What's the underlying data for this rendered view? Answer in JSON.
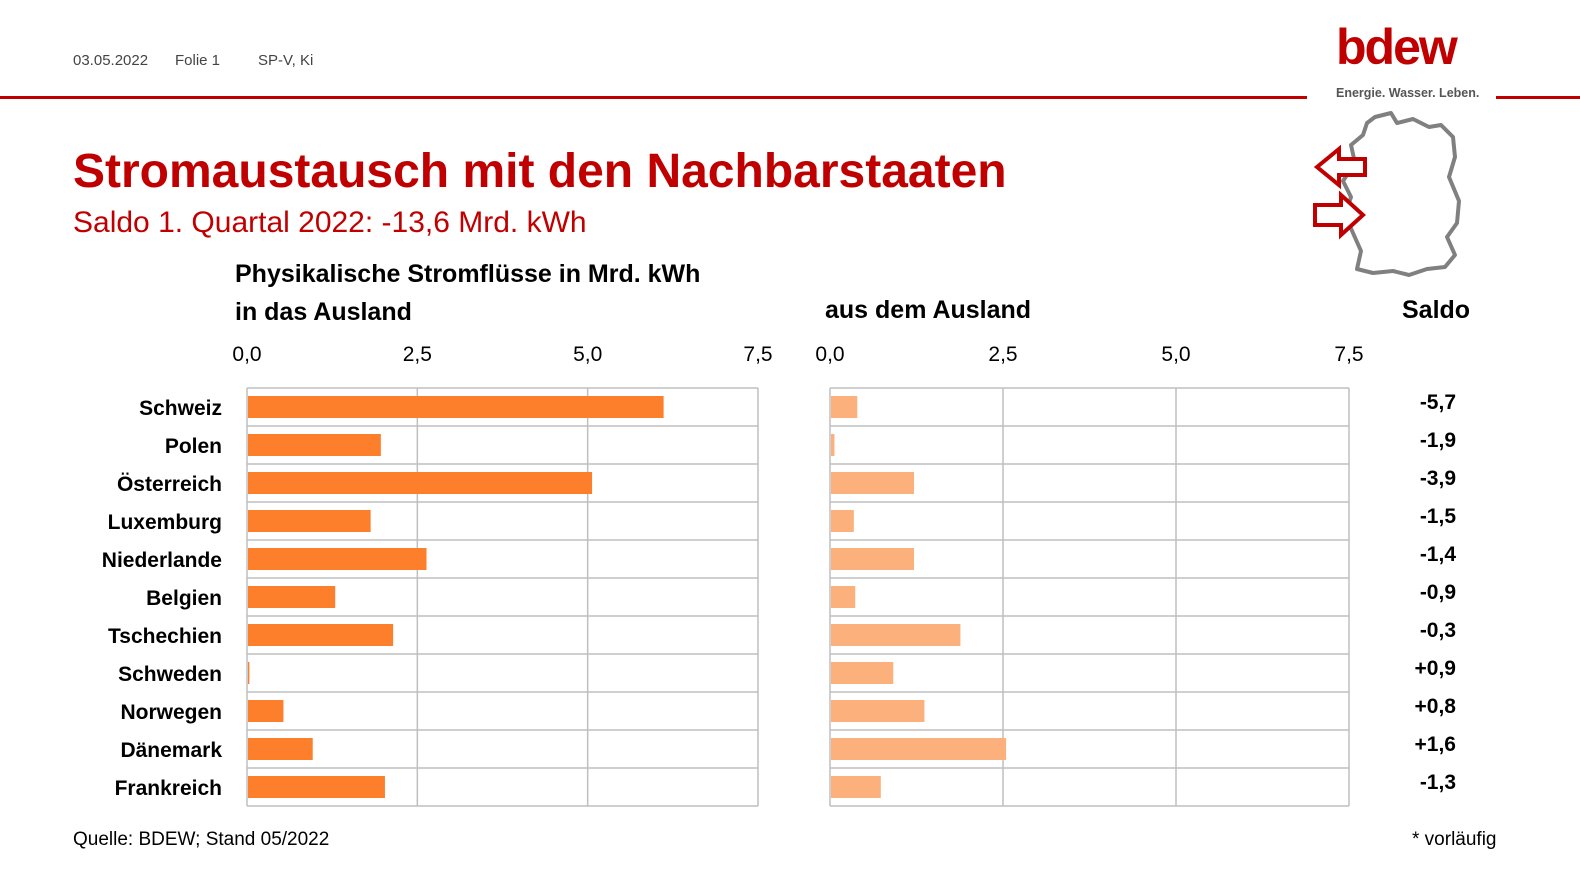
{
  "header": {
    "date": "03.05.2022",
    "slide": "Folie 1",
    "author": "SP-V, Ki"
  },
  "logo": {
    "word": "bdew",
    "tagline": "Energie. Wasser. Leben."
  },
  "title": "Stromaustausch mit den Nachbarstaaten",
  "subtitle": "Saldo 1. Quartal 2022: -13,6 Mrd. kWh",
  "panel_heading_line1": "Physikalische Stromflüsse in Mrd. kWh",
  "panel_heading_line2": "in das Ausland",
  "right_panel_heading": "aus dem Ausland",
  "saldo_heading": "Saldo",
  "footer": {
    "source": "Quelle: BDEW; Stand 05/2022",
    "note": "* vorläufig"
  },
  "icons": [
    "germany-map-icon",
    "arrow-left-icon",
    "arrow-right-icon"
  ],
  "colors": {
    "brand": "#c00000",
    "export": "#fd7f2c",
    "import": "#fcb07c",
    "grid": "#bfbfbf"
  },
  "chart_data": {
    "type": "bar",
    "orientation": "horizontal",
    "categories": [
      "Schweiz",
      "Polen",
      "Österreich",
      "Luxemburg",
      "Niederlande",
      "Belgien",
      "Tschechien",
      "Schweden",
      "Norwegen",
      "Dänemark",
      "Frankreich"
    ],
    "panels": [
      {
        "heading": "in das Ausland",
        "xlim": [
          0,
          7.5
        ],
        "ticks": [
          "0,0",
          "2,5",
          "5,0",
          "7,5"
        ],
        "values": [
          6.1,
          1.95,
          5.05,
          1.8,
          2.62,
          1.28,
          2.13,
          0.02,
          0.52,
          0.95,
          2.01
        ],
        "color": "#fd7f2c"
      },
      {
        "heading": "aus dem Ausland",
        "xlim": [
          0,
          7.5
        ],
        "ticks": [
          "0,0",
          "2,5",
          "5,0",
          "7,5"
        ],
        "values": [
          0.38,
          0.05,
          1.2,
          0.33,
          1.2,
          0.35,
          1.87,
          0.9,
          1.35,
          2.53,
          0.72
        ],
        "color": "#fcb07c"
      }
    ],
    "saldo": [
      "-5,7",
      "-1,9",
      "-3,9",
      "-1,5",
      "-1,4",
      "-0,9",
      "-0,3",
      "+0,9",
      "+0,8",
      "+1,6",
      "-1,3"
    ],
    "grid": true
  }
}
